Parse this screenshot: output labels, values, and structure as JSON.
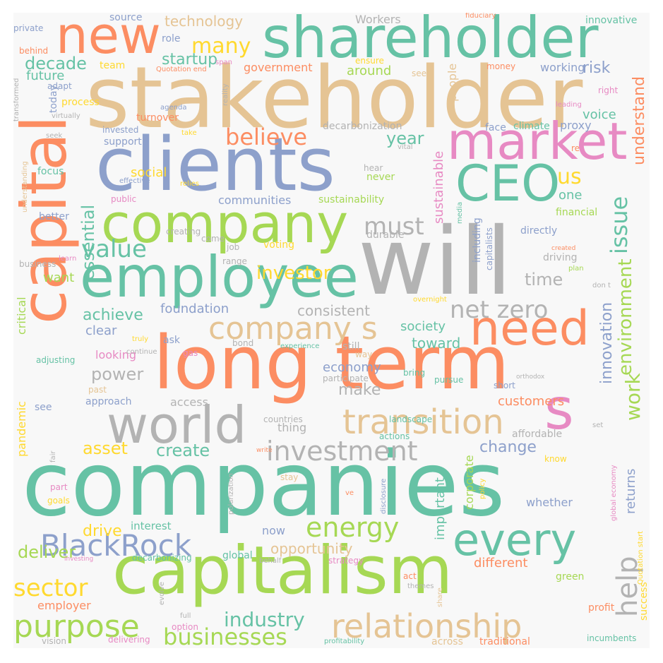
{
  "palette": {
    "green": "#66c2a5",
    "orange": "#fc8d62",
    "blue": "#8da0cb",
    "pink": "#e78ac3",
    "lime": "#a6d854",
    "yellow": "#ffd92f",
    "tan": "#e5c494",
    "gray": "#b3b3b3"
  },
  "words": [
    {
      "text": "companies",
      "color": "green"
    },
    {
      "text": "stakeholder",
      "color": "tan"
    },
    {
      "text": "will",
      "color": "gray"
    },
    {
      "text": "long term",
      "color": "orange"
    },
    {
      "text": "capitalism",
      "color": "lime"
    },
    {
      "text": "capital",
      "color": "orange"
    },
    {
      "text": "clients",
      "color": "blue"
    },
    {
      "text": "shareholder",
      "color": "green"
    },
    {
      "text": "employee",
      "color": "green"
    },
    {
      "text": "company",
      "color": "lime"
    },
    {
      "text": "new",
      "color": "orange"
    },
    {
      "text": "market",
      "color": "pink"
    },
    {
      "text": "CEO",
      "color": "green"
    },
    {
      "text": "world",
      "color": "gray"
    },
    {
      "text": "s",
      "color": "pink"
    },
    {
      "text": "need",
      "color": "orange"
    },
    {
      "text": "relationship",
      "color": "tan"
    },
    {
      "text": "transition",
      "color": "tan"
    },
    {
      "text": "every",
      "color": "green"
    },
    {
      "text": "company s",
      "color": "tan"
    },
    {
      "text": "BlackRock",
      "color": "blue"
    },
    {
      "text": "purpose",
      "color": "lime"
    },
    {
      "text": "investment",
      "color": "gray"
    },
    {
      "text": "energy",
      "color": "lime"
    },
    {
      "text": "net zero",
      "color": "gray"
    },
    {
      "text": "value",
      "color": "green"
    },
    {
      "text": "help",
      "color": "gray"
    },
    {
      "text": "work",
      "color": "lime"
    },
    {
      "text": "environment",
      "color": "lime"
    },
    {
      "text": "issue",
      "color": "green"
    },
    {
      "text": "believe",
      "color": "orange"
    },
    {
      "text": "must",
      "color": "gray"
    },
    {
      "text": "businesses",
      "color": "lime"
    },
    {
      "text": "sector",
      "color": "yellow"
    },
    {
      "text": "industry",
      "color": "green"
    },
    {
      "text": "many",
      "color": "yellow"
    },
    {
      "text": "us",
      "color": "yellow"
    },
    {
      "text": "investor",
      "color": "yellow"
    },
    {
      "text": "understand",
      "color": "orange"
    },
    {
      "text": "innovation",
      "color": "blue"
    },
    {
      "text": "decade",
      "color": "green"
    },
    {
      "text": "startup",
      "color": "green"
    },
    {
      "text": "technology",
      "color": "tan"
    },
    {
      "text": "year",
      "color": "green"
    },
    {
      "text": "power",
      "color": "gray"
    },
    {
      "text": "create",
      "color": "green"
    },
    {
      "text": "asset",
      "color": "yellow"
    },
    {
      "text": "change",
      "color": "blue"
    },
    {
      "text": "deliver",
      "color": "lime"
    },
    {
      "text": "drive",
      "color": "yellow"
    },
    {
      "text": "opportunity",
      "color": "tan"
    },
    {
      "text": "make",
      "color": "gray"
    },
    {
      "text": "essential",
      "color": "green"
    },
    {
      "text": "achieve",
      "color": "green"
    },
    {
      "text": "time",
      "color": "gray"
    },
    {
      "text": "consistent",
      "color": "gray"
    },
    {
      "text": "foundation",
      "color": "blue"
    },
    {
      "text": "society",
      "color": "green"
    },
    {
      "text": "toward",
      "color": "green"
    },
    {
      "text": "economy",
      "color": "blue"
    },
    {
      "text": "customers",
      "color": "orange"
    },
    {
      "text": "important",
      "color": "green"
    },
    {
      "text": "returns",
      "color": "blue"
    },
    {
      "text": "different",
      "color": "orange"
    },
    {
      "text": "sustainable",
      "color": "pink"
    },
    {
      "text": "social",
      "color": "yellow"
    },
    {
      "text": "communities",
      "color": "blue"
    },
    {
      "text": "sustainability",
      "color": "lime"
    },
    {
      "text": "employer",
      "color": "orange"
    },
    {
      "text": "future",
      "color": "green"
    },
    {
      "text": "want",
      "color": "lime"
    },
    {
      "text": "clear",
      "color": "blue"
    },
    {
      "text": "looking",
      "color": "pink"
    },
    {
      "text": "interest",
      "color": "green"
    },
    {
      "text": "now",
      "color": "blue"
    },
    {
      "text": "global",
      "color": "green"
    },
    {
      "text": "whether",
      "color": "blue"
    },
    {
      "text": "corporate",
      "color": "lime"
    },
    {
      "text": "success",
      "color": "yellow"
    },
    {
      "text": "risk",
      "color": "blue"
    },
    {
      "text": "one",
      "color": "green"
    },
    {
      "text": "voice",
      "color": "green"
    },
    {
      "text": "people",
      "color": "tan"
    },
    {
      "text": "around",
      "color": "lime"
    },
    {
      "text": "government",
      "color": "orange"
    },
    {
      "text": "decarbonization",
      "color": "gray"
    },
    {
      "text": "climate",
      "color": "green"
    },
    {
      "text": "proxy",
      "color": "blue"
    },
    {
      "text": "face",
      "color": "blue"
    },
    {
      "text": "working",
      "color": "blue"
    },
    {
      "text": "team",
      "color": "yellow"
    },
    {
      "text": "source",
      "color": "blue"
    },
    {
      "text": "role",
      "color": "blue"
    },
    {
      "text": "Workers",
      "color": "gray"
    },
    {
      "text": "innovative",
      "color": "green"
    },
    {
      "text": "private",
      "color": "blue"
    },
    {
      "text": "behind",
      "color": "orange"
    },
    {
      "text": "adapt",
      "color": "blue"
    },
    {
      "text": "today",
      "color": "blue"
    },
    {
      "text": "process",
      "color": "yellow"
    },
    {
      "text": "invested",
      "color": "blue"
    },
    {
      "text": "turnover",
      "color": "orange"
    },
    {
      "text": "support",
      "color": "blue"
    },
    {
      "text": "focus",
      "color": "green"
    },
    {
      "text": "better",
      "color": "blue"
    },
    {
      "text": "never",
      "color": "lime"
    },
    {
      "text": "hear",
      "color": "gray"
    },
    {
      "text": "durable",
      "color": "gray"
    },
    {
      "text": "job",
      "color": "gray"
    },
    {
      "text": "voting",
      "color": "yellow"
    },
    {
      "text": "range",
      "color": "gray"
    },
    {
      "text": "driving",
      "color": "gray"
    },
    {
      "text": "directly",
      "color": "blue"
    },
    {
      "text": "including",
      "color": "blue"
    },
    {
      "text": "capitalists",
      "color": "blue"
    },
    {
      "text": "financial",
      "color": "lime"
    },
    {
      "text": "critical",
      "color": "lime"
    },
    {
      "text": "pandemic",
      "color": "yellow"
    },
    {
      "text": "see",
      "color": "blue"
    },
    {
      "text": "approach",
      "color": "blue"
    },
    {
      "text": "access",
      "color": "gray"
    },
    {
      "text": "thing",
      "color": "gray"
    },
    {
      "text": "countries",
      "color": "gray"
    },
    {
      "text": "landscape",
      "color": "green"
    },
    {
      "text": "affordable",
      "color": "gray"
    },
    {
      "text": "actions",
      "color": "green"
    },
    {
      "text": "ask",
      "color": "blue"
    },
    {
      "text": "bond",
      "color": "gray"
    },
    {
      "text": "still",
      "color": "gray"
    },
    {
      "text": "way",
      "color": "tan"
    },
    {
      "text": "bring",
      "color": "green"
    },
    {
      "text": "pursue",
      "color": "green"
    },
    {
      "text": "short",
      "color": "blue"
    },
    {
      "text": "participate",
      "color": "gray"
    },
    {
      "text": "adjusting",
      "color": "green"
    },
    {
      "text": "continue",
      "color": "gray"
    },
    {
      "text": "gas",
      "color": "pink"
    },
    {
      "text": "creating",
      "color": "gray"
    },
    {
      "text": "truly",
      "color": "yellow"
    },
    {
      "text": "experience",
      "color": "green"
    },
    {
      "text": "past",
      "color": "tan"
    },
    {
      "text": "come",
      "color": "gray"
    },
    {
      "text": "business",
      "color": "gray"
    },
    {
      "text": "learn",
      "color": "pink"
    },
    {
      "text": "public",
      "color": "pink"
    },
    {
      "text": "relies",
      "color": "yellow"
    },
    {
      "text": "effective",
      "color": "blue"
    },
    {
      "text": "understanding",
      "color": "tan"
    },
    {
      "text": "seek",
      "color": "gray"
    },
    {
      "text": "virtually",
      "color": "gray"
    },
    {
      "text": "take",
      "color": "yellow"
    },
    {
      "text": "transformed",
      "color": "gray"
    },
    {
      "text": "agenda",
      "color": "blue"
    },
    {
      "text": "reality",
      "color": "gray"
    },
    {
      "text": "Quotation end",
      "color": "orange"
    },
    {
      "text": "span",
      "color": "pink"
    },
    {
      "text": "ensure",
      "color": "yellow"
    },
    {
      "text": "seen",
      "color": "tan"
    },
    {
      "text": "money",
      "color": "orange"
    },
    {
      "text": "fiduciary",
      "color": "orange"
    },
    {
      "text": "right",
      "color": "pink"
    },
    {
      "text": "leading",
      "color": "pink"
    },
    {
      "text": "vital",
      "color": "gray"
    },
    {
      "text": "re",
      "color": "orange"
    },
    {
      "text": "media",
      "color": "green"
    },
    {
      "text": "created",
      "color": "orange"
    },
    {
      "text": "plan",
      "color": "lime"
    },
    {
      "text": "don t",
      "color": "gray"
    },
    {
      "text": "overnight",
      "color": "yellow"
    },
    {
      "text": "set",
      "color": "gray"
    },
    {
      "text": "know",
      "color": "yellow"
    },
    {
      "text": "global economy",
      "color": "pink"
    },
    {
      "text": "Quotation start",
      "color": "yellow"
    },
    {
      "text": "policy",
      "color": "yellow"
    },
    {
      "text": "stay",
      "color": "tan"
    },
    {
      "text": "part",
      "color": "pink"
    },
    {
      "text": "goals",
      "color": "yellow"
    },
    {
      "text": "polarization",
      "color": "gray"
    },
    {
      "text": "disclosure",
      "color": "blue"
    },
    {
      "text": "ve",
      "color": "orange"
    },
    {
      "text": "investing",
      "color": "pink"
    },
    {
      "text": "decarbonizing",
      "color": "green"
    },
    {
      "text": "behalf",
      "color": "gray"
    },
    {
      "text": "strategy",
      "color": "pink"
    },
    {
      "text": "act",
      "color": "orange"
    },
    {
      "text": "themes",
      "color": "gray"
    },
    {
      "text": "green",
      "color": "lime"
    },
    {
      "text": "evolve",
      "color": "gray"
    },
    {
      "text": "share",
      "color": "tan"
    },
    {
      "text": "option",
      "color": "pink"
    },
    {
      "text": "full",
      "color": "gray"
    },
    {
      "text": "profit",
      "color": "orange"
    },
    {
      "text": "incumbents",
      "color": "green"
    },
    {
      "text": "vision",
      "color": "gray"
    },
    {
      "text": "delivering",
      "color": "pink"
    },
    {
      "text": "profitability",
      "color": "green"
    },
    {
      "text": "across",
      "color": "tan"
    },
    {
      "text": "traditional",
      "color": "orange"
    },
    {
      "text": "fair",
      "color": "gray"
    },
    {
      "text": "write",
      "color": "orange"
    },
    {
      "text": "orthodox",
      "color": "gray"
    }
  ]
}
